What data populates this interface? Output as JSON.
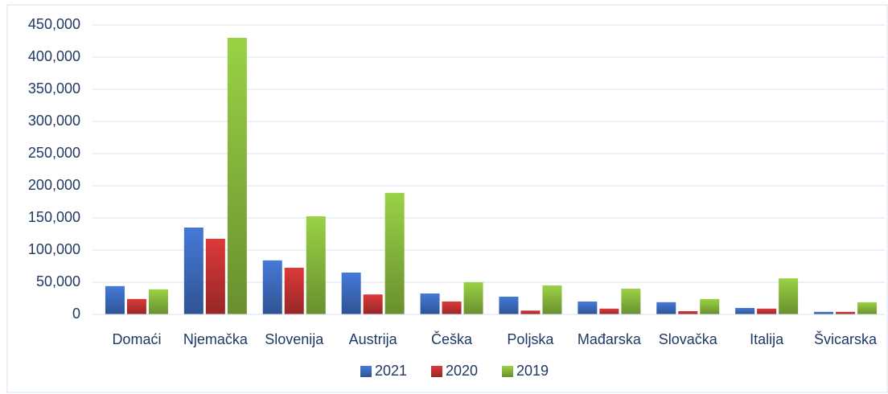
{
  "chart_data": {
    "type": "bar",
    "categories": [
      "Domaći",
      "Njemačka",
      "Slovenija",
      "Austrija",
      "Češka",
      "Poljska",
      "Mađarska",
      "Slovačka",
      "Italija",
      "Švicarska"
    ],
    "series": [
      {
        "name": "2021",
        "color": "#3f6fc4",
        "values": [
          44000,
          135000,
          84000,
          65000,
          32500,
          27500,
          20000,
          19000,
          10000,
          4000
        ]
      },
      {
        "name": "2020",
        "color": "#c93434",
        "values": [
          24000,
          117500,
          72500,
          31000,
          20000,
          6000,
          9000,
          5000,
          9000,
          4000
        ]
      },
      {
        "name": "2019",
        "color": "#8cbf3f",
        "values": [
          39000,
          430000,
          152500,
          189000,
          50000,
          45000,
          40000,
          24000,
          56000,
          19000
        ]
      }
    ],
    "ylim": [
      0,
      450000
    ],
    "yticks": [
      0,
      {
        "value": 50000,
        "label": "50,000"
      },
      {
        "value": 100000,
        "label": "100,000"
      },
      {
        "value": 150000,
        "label": "150,000"
      },
      {
        "value": 200000,
        "label": "200,000"
      },
      {
        "value": 250000,
        "label": "250,000"
      },
      {
        "value": 300000,
        "label": "300,000"
      },
      {
        "value": 350000,
        "label": "350,000"
      },
      {
        "value": 400000,
        "label": "400,000"
      },
      {
        "value": 450000,
        "label": "450,000"
      }
    ],
    "grid": true,
    "legend": "bottom"
  }
}
